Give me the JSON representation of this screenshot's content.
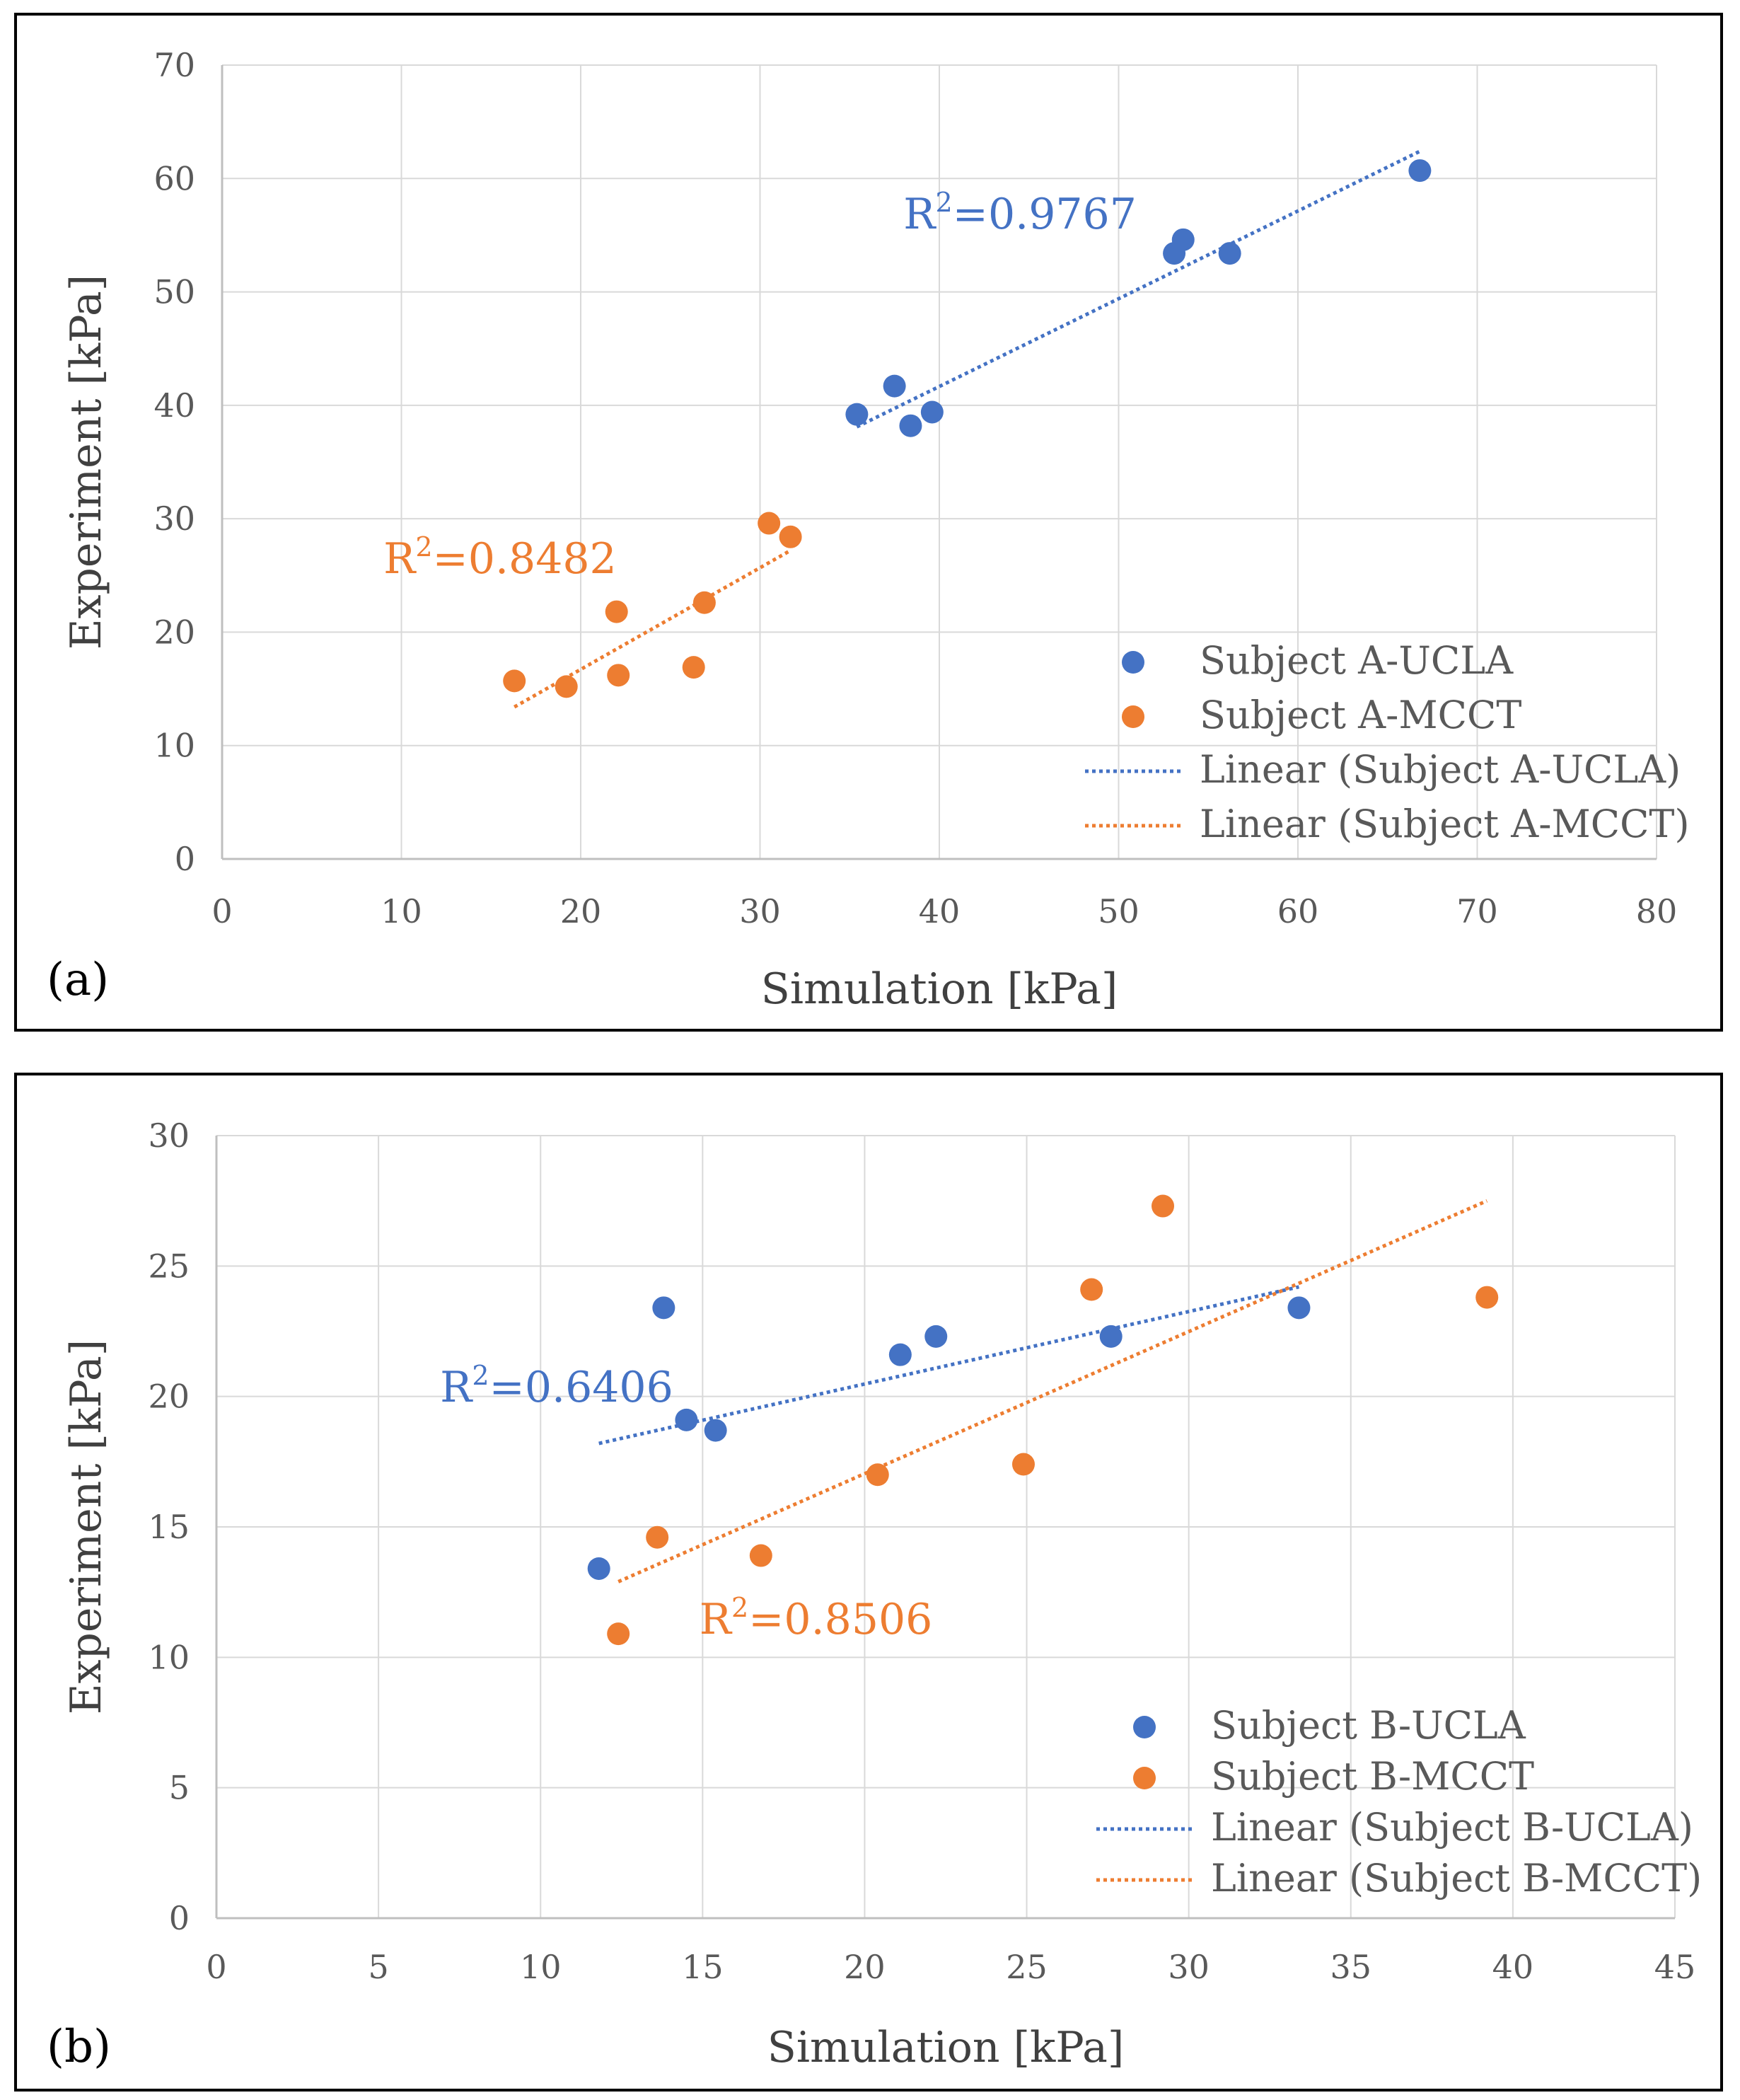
{
  "chart_data": [
    {
      "type": "scatter",
      "panel_label": "(a)",
      "xlabel": "Simulation [kPa]",
      "ylabel": "Experiment [kPa]",
      "xlim": [
        0,
        80
      ],
      "ylim": [
        0,
        70
      ],
      "xticks": [
        "0",
        "10",
        "20",
        "30",
        "40",
        "50",
        "60",
        "70",
        "80"
      ],
      "yticks": [
        "0",
        "10",
        "20",
        "30",
        "40",
        "50",
        "60",
        "70"
      ],
      "grid": true,
      "legend_position": "bottom-right",
      "series": [
        {
          "name": "Subject A-UCLA",
          "color": "#4472C4",
          "x": [
            35.4,
            37.5,
            38.4,
            39.6,
            53.1,
            53.6,
            56.2,
            66.8
          ],
          "y": [
            39.2,
            41.7,
            38.2,
            39.4,
            53.4,
            54.6,
            53.4,
            60.7
          ],
          "trendline": {
            "name": "Linear (Subject A-UCLA)",
            "x": [
              35.4,
              66.8
            ],
            "y": [
              38.1,
              62.4
            ],
            "r2_text": "=0.9767",
            "r2_pos": [
              38,
              55.6
            ]
          }
        },
        {
          "name": "Subject A-MCCT",
          "color": "#ED7D31",
          "x": [
            16.3,
            19.2,
            22.0,
            22.1,
            26.3,
            26.9,
            30.5,
            31.7
          ],
          "y": [
            15.7,
            15.2,
            21.8,
            16.2,
            16.9,
            22.6,
            29.6,
            28.4
          ],
          "trendline": {
            "name": "Linear (Subject A-MCCT)",
            "x": [
              16.3,
              31.7
            ],
            "y": [
              13.4,
              27.2
            ],
            "r2_text": "=0.8482",
            "r2_pos": [
              9,
              25.2
            ]
          }
        }
      ]
    },
    {
      "type": "scatter",
      "panel_label": "(b)",
      "xlabel": "Simulation [kPa]",
      "ylabel": "Experiment [kPa]",
      "xlim": [
        0,
        45
      ],
      "ylim": [
        0,
        30
      ],
      "xticks": [
        "0",
        "5",
        "10",
        "15",
        "20",
        "25",
        "30",
        "35",
        "40",
        "45"
      ],
      "yticks": [
        "0",
        "5",
        "10",
        "15",
        "20",
        "25",
        "30"
      ],
      "grid": true,
      "legend_position": "bottom-right",
      "series": [
        {
          "name": "Subject B-UCLA",
          "color": "#4472C4",
          "x": [
            11.8,
            13.8,
            14.5,
            15.4,
            21.1,
            22.2,
            27.6,
            33.4
          ],
          "y": [
            13.4,
            23.4,
            19.1,
            18.7,
            21.6,
            22.3,
            22.3,
            23.4
          ],
          "trendline": {
            "name": "Linear (Subject B-UCLA)",
            "x": [
              11.8,
              33.4
            ],
            "y": [
              18.2,
              24.2
            ],
            "r2_text": "=0.6406",
            "r2_pos": [
              6.9,
              19.8
            ]
          }
        },
        {
          "name": "Subject B-MCCT",
          "color": "#ED7D31",
          "x": [
            12.4,
            13.6,
            16.8,
            20.4,
            24.9,
            27.0,
            29.2,
            39.2
          ],
          "y": [
            10.9,
            14.6,
            13.9,
            17.0,
            17.4,
            24.1,
            27.3,
            23.8
          ],
          "trendline": {
            "name": "Linear (Subject B-MCCT)",
            "x": [
              12.4,
              39.2
            ],
            "y": [
              12.9,
              27.5
            ],
            "r2_text": "=0.8506",
            "r2_pos": [
              14.9,
              10.9
            ]
          }
        }
      ]
    }
  ]
}
